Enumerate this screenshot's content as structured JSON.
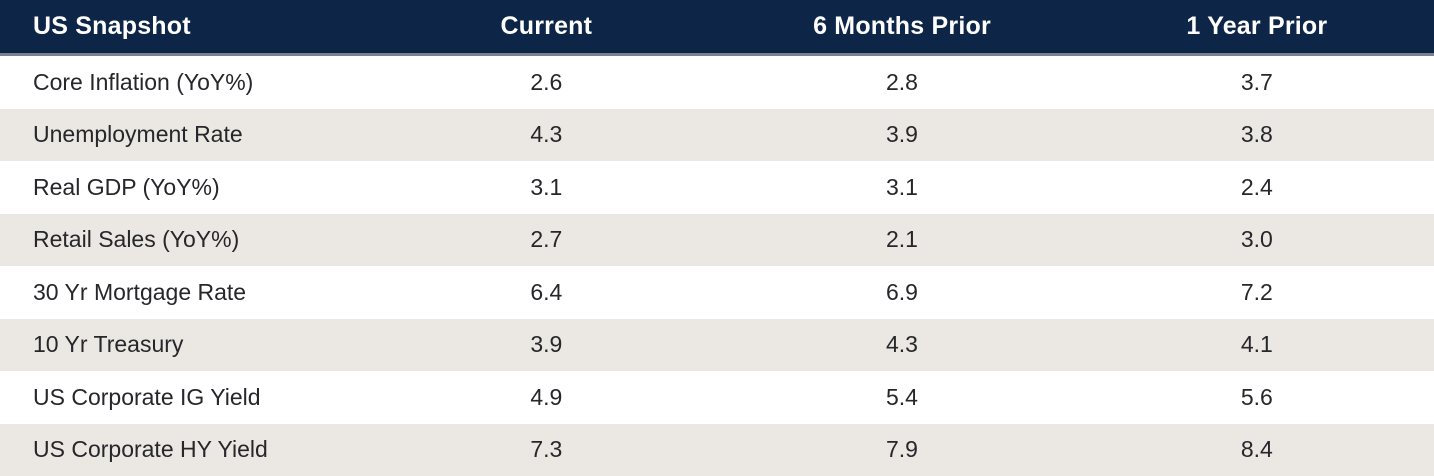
{
  "table": {
    "title": "US Snapshot",
    "columns": [
      "Current",
      "6 Months Prior",
      "1 Year Prior"
    ],
    "rows": [
      {
        "label": "Core Inflation (YoY%)",
        "values": [
          "2.6",
          "2.8",
          "3.7"
        ]
      },
      {
        "label": "Unemployment Rate",
        "values": [
          "4.3",
          "3.9",
          "3.8"
        ]
      },
      {
        "label": "Real GDP (YoY%)",
        "values": [
          "3.1",
          "3.1",
          "2.4"
        ]
      },
      {
        "label": "Retail Sales (YoY%)",
        "values": [
          "2.7",
          "2.1",
          "3.0"
        ]
      },
      {
        "label": "30 Yr Mortgage Rate",
        "values": [
          "6.4",
          "6.9",
          "7.2"
        ]
      },
      {
        "label": "10 Yr Treasury",
        "values": [
          "3.9",
          "4.3",
          "4.1"
        ]
      },
      {
        "label": "US Corporate IG Yield",
        "values": [
          "4.9",
          "5.4",
          "5.6"
        ]
      },
      {
        "label": "US Corporate HY Yield",
        "values": [
          "7.3",
          "7.9",
          "8.4"
        ]
      }
    ]
  },
  "colors": {
    "header_bg": "#0d2547",
    "header_text": "#ffffff",
    "separator": "#798090",
    "row_bg": "#ffffff",
    "row_alt_bg": "#ebe7e2",
    "body_text": "#26262b"
  },
  "chart_data": {
    "type": "table",
    "title": "US Snapshot",
    "columns": [
      "Current",
      "6 Months Prior",
      "1 Year Prior"
    ],
    "rows": [
      {
        "label": "Core Inflation (YoY%)",
        "values": [
          2.6,
          2.8,
          3.7
        ]
      },
      {
        "label": "Unemployment Rate",
        "values": [
          4.3,
          3.9,
          3.8
        ]
      },
      {
        "label": "Real GDP (YoY%)",
        "values": [
          3.1,
          3.1,
          2.4
        ]
      },
      {
        "label": "Retail Sales (YoY%)",
        "values": [
          2.7,
          2.1,
          3.0
        ]
      },
      {
        "label": "30 Yr Mortgage Rate",
        "values": [
          6.4,
          6.9,
          7.2
        ]
      },
      {
        "label": "10 Yr Treasury",
        "values": [
          3.9,
          4.3,
          4.1
        ]
      },
      {
        "label": "US Corporate IG Yield",
        "values": [
          4.9,
          5.4,
          5.6
        ]
      },
      {
        "label": "US Corporate HY Yield",
        "values": [
          7.3,
          7.9,
          8.4
        ]
      }
    ]
  }
}
